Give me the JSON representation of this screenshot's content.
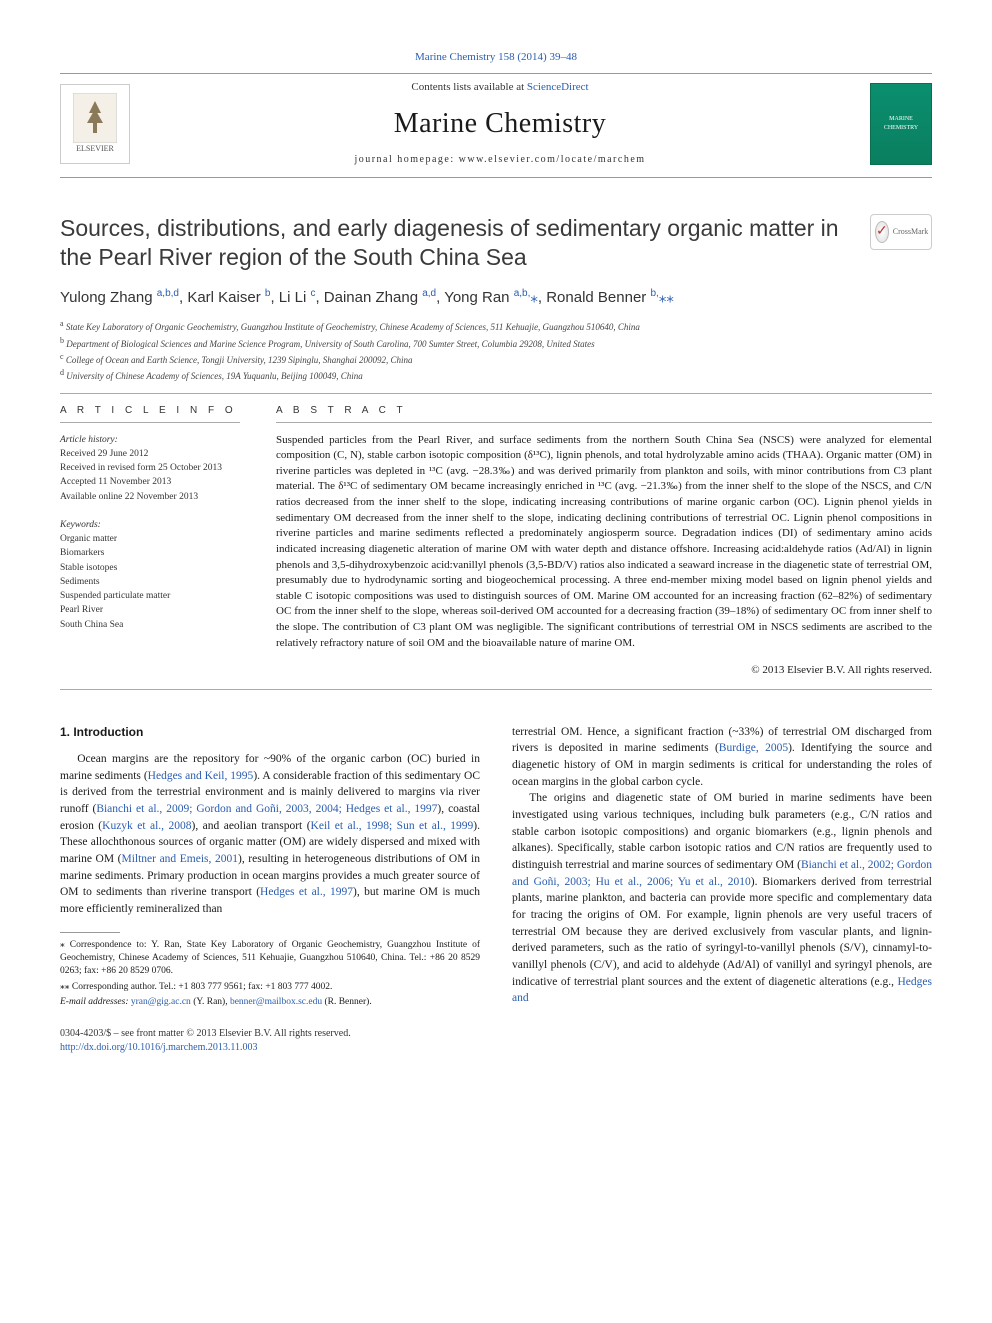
{
  "top_citation": "Marine Chemistry 158 (2014) 39–48",
  "header": {
    "contents_prefix": "Contents lists available at ",
    "contents_link": "ScienceDirect",
    "journal": "Marine Chemistry",
    "homepage_prefix": "journal homepage: ",
    "homepage": "www.elsevier.com/locate/marchem",
    "elsevier_label": "ELSEVIER",
    "cover_label": "MARINE CHEMISTRY"
  },
  "crossmark_label": "CrossMark",
  "title": "Sources, distributions, and early diagenesis of sedimentary organic matter in the Pearl River region of the South China Sea",
  "authors_html": "Yulong Zhang <sup>a,b,d</sup>, Karl Kaiser <sup>b</sup>, Li Li <sup>c</sup>, Dainan Zhang <sup>a,d</sup>, Yong Ran <sup>a,b,</sup><span class='star'>⁎</span>, Ronald Benner <sup>b,</sup><span class='star'>⁎⁎</span>",
  "affiliations": [
    {
      "sup": "a",
      "text": "State Key Laboratory of Organic Geochemistry, Guangzhou Institute of Geochemistry, Chinese Academy of Sciences, 511 Kehuajie, Guangzhou 510640, China"
    },
    {
      "sup": "b",
      "text": "Department of Biological Sciences and Marine Science Program, University of South Carolina, 700 Sumter Street, Columbia 29208, United States"
    },
    {
      "sup": "c",
      "text": "College of Ocean and Earth Science, Tongji University, 1239 Sipinglu, Shanghai 200092, China"
    },
    {
      "sup": "d",
      "text": "University of Chinese Academy of Sciences, 19A Yuquanlu, Beijing 100049, China"
    }
  ],
  "article_info": {
    "heading": "A R T I C L E   I N F O",
    "history_label": "Article history:",
    "history": [
      "Received 29 June 2012",
      "Received in revised form 25 October 2013",
      "Accepted 11 November 2013",
      "Available online 22 November 2013"
    ],
    "keywords_label": "Keywords:",
    "keywords": [
      "Organic matter",
      "Biomarkers",
      "Stable isotopes",
      "Sediments",
      "Suspended particulate matter",
      "Pearl River",
      "South China Sea"
    ]
  },
  "abstract": {
    "heading": "A B S T R A C T",
    "text": "Suspended particles from the Pearl River, and surface sediments from the northern South China Sea (NSCS) were analyzed for elemental composition (C, N), stable carbon isotopic composition (δ¹³C), lignin phenols, and total hydrolyzable amino acids (THAA). Organic matter (OM) in riverine particles was depleted in ¹³C (avg. −28.3‰) and was derived primarily from plankton and soils, with minor contributions from C3 plant material. The δ¹³C of sedimentary OM became increasingly enriched in ¹³C (avg. −21.3‰) from the inner shelf to the slope of the NSCS, and C/N ratios decreased from the inner shelf to the slope, indicating increasing contributions of marine organic carbon (OC). Lignin phenol yields in sedimentary OM decreased from the inner shelf to the slope, indicating declining contributions of terrestrial OC. Lignin phenol compositions in riverine particles and marine sediments reflected a predominately angiosperm source. Degradation indices (DI) of sedimentary amino acids indicated increasing diagenetic alteration of marine OM with water depth and distance offshore. Increasing acid:aldehyde ratios (Ad/Al) in lignin phenols and 3,5-dihydroxybenzoic acid:vanillyl phenols (3,5-BD/V) ratios also indicated a seaward increase in the diagenetic state of terrestrial OM, presumably due to hydrodynamic sorting and biogeochemical processing. A three end-member mixing model based on lignin phenol yields and stable C isotopic compositions was used to distinguish sources of OM. Marine OM accounted for an increasing fraction (62–82%) of sedimentary OC from the inner shelf to the slope, whereas soil-derived OM accounted for a decreasing fraction (39–18%) of sedimentary OC from inner shelf to the slope. The contribution of C3 plant OM was negligible. The significant contributions of terrestrial OM in NSCS sediments are ascribed to the relatively refractory nature of soil OM and the bioavailable nature of marine OM.",
    "copyright": "© 2013 Elsevier B.V. All rights reserved."
  },
  "intro": {
    "heading": "1. Introduction",
    "para1_pre": "Ocean margins are the repository for ~90% of the organic carbon (OC) buried in marine sediments (",
    "ref1": "Hedges and Keil, 1995",
    "para1_mid1": "). A considerable fraction of this sedimentary OC is derived from the terrestrial environment and is mainly delivered to margins via river runoff (",
    "ref2": "Bianchi et al., 2009; Gordon and Goñi, 2003, 2004; Hedges et al., 1997",
    "para1_mid2": "), coastal erosion (",
    "ref3": "Kuzyk et al., 2008",
    "para1_mid3": "), and aeolian transport (",
    "ref4": "Keil et al., 1998; Sun et al., 1999",
    "para1_mid4": "). These allochthonous sources of organic matter (OM) are widely dispersed and mixed with marine OM (",
    "ref5": "Miltner and Emeis, 2001",
    "para1_mid5": "), resulting in heterogeneous distributions of OM in marine sediments. Primary production in ocean margins provides a much greater source of OM to sediments than riverine transport (",
    "ref6": "Hedges et al., 1997",
    "para1_post": "), but marine OM is much more efficiently remineralized than",
    "para2_pre": "terrestrial OM. Hence, a significant fraction (~33%) of terrestrial OM discharged from rivers is deposited in marine sediments (",
    "ref7": "Burdige, 2005",
    "para2_post": "). Identifying the source and diagenetic history of OM in margin sediments is critical for understanding the roles of ocean margins in the global carbon cycle.",
    "para3_pre": "The origins and diagenetic state of OM buried in marine sediments have been investigated using various techniques, including bulk parameters (e.g., C/N ratios and stable carbon isotopic compositions) and organic biomarkers (e.g., lignin phenols and alkanes). Specifically, stable carbon isotopic ratios and C/N ratios are frequently used to distinguish terrestrial and marine sources of sedimentary OM (",
    "ref8": "Bianchi et al., 2002; Gordon and Goñi, 2003; Hu et al., 2006; Yu et al., 2010",
    "para3_mid": "). Biomarkers derived from terrestrial plants, marine plankton, and bacteria can provide more specific and complementary data for tracing the origins of OM. For example, lignin phenols are very useful tracers of terrestrial OM because they are derived exclusively from vascular plants, and lignin-derived parameters, such as the ratio of syringyl-to-vanillyl phenols (S/V), cinnamyl-to-vanillyl phenols (C/V), and acid to aldehyde (Ad/Al) of vanillyl and syringyl phenols, are indicative of terrestrial plant sources and the extent of diagenetic alterations (e.g., ",
    "ref9": "Hedges and"
  },
  "footnotes": {
    "corr1": "⁎ Correspondence to: Y. Ran, State Key Laboratory of Organic Geochemistry, Guangzhou Institute of Geochemistry, Chinese Academy of Sciences, 511 Kehuajie, Guangzhou 510640, China. Tel.: +86 20 8529 0263; fax: +86 20 8529 0706.",
    "corr2": "⁎⁎ Corresponding author. Tel.: +1 803 777 9561; fax: +1 803 777 4002.",
    "email_label": "E-mail addresses: ",
    "email1": "yran@gig.ac.cn",
    "email1_name": " (Y. Ran), ",
    "email2": "benner@mailbox.sc.edu",
    "email2_name": " (R. Benner)."
  },
  "bottom": {
    "issn": "0304-4203/$ – see front matter © 2013 Elsevier B.V. All rights reserved.",
    "doi": "http://dx.doi.org/10.1016/j.marchem.2013.11.003"
  },
  "colors": {
    "link": "#2a5db0",
    "text": "#1a1a1a",
    "rule": "#aaaaaa"
  }
}
